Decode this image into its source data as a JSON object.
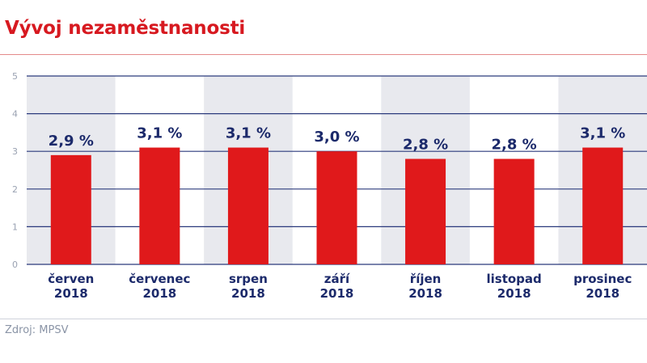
{
  "header": {
    "title": "Vývoj nezaměstnanosti"
  },
  "footer": {
    "source": "Zdroj: MPSV"
  },
  "chart_data": {
    "type": "bar",
    "title": "Vývoj nezaměstnanosti",
    "categories": [
      [
        "červen",
        "2018"
      ],
      [
        "červenec",
        "2018"
      ],
      [
        "srpen",
        "2018"
      ],
      [
        "září",
        "2018"
      ],
      [
        "říjen",
        "2018"
      ],
      [
        "listopad",
        "2018"
      ],
      [
        "prosinec",
        "2018"
      ]
    ],
    "values": [
      2.9,
      3.1,
      3.1,
      3.0,
      2.8,
      2.8,
      3.1
    ],
    "value_labels": [
      "2,9 %",
      "3,1 %",
      "3,1 %",
      "3,0 %",
      "2,8 %",
      "2,8 %",
      "3,1 %"
    ],
    "yticks": [
      "0",
      "1",
      "2",
      "3",
      "4",
      "5"
    ],
    "ylim": [
      0,
      5
    ],
    "grid": true,
    "colors": {
      "bar": "#e0191b",
      "band": "#e8e9ee",
      "grid": "#2b3a7c",
      "text": "#1c2a6b"
    }
  }
}
